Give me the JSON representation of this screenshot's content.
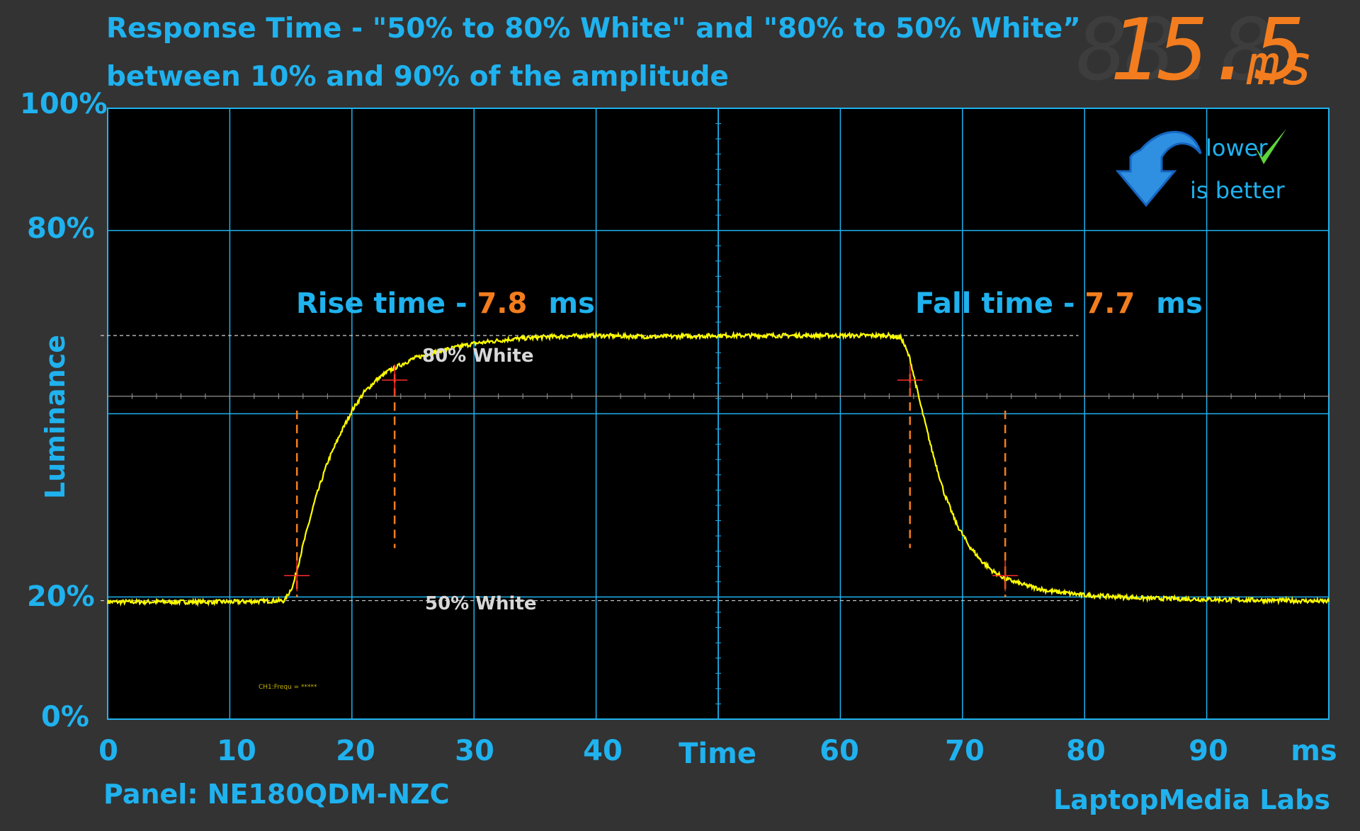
{
  "header": {
    "title_line1": "Response Time - \"50% to 80% White\" and \"80% to 50% White”",
    "title_line2": "between 10% and 90% of the amplitude",
    "result_value": "15.5",
    "result_unit": "ms"
  },
  "badge": {
    "line1": "lower",
    "line2": "is better",
    "icon": "down-arrow-icon",
    "check": "checkmark-icon"
  },
  "annotations": {
    "rise_label": "Rise time - ",
    "rise_value": "7.8",
    "rise_unit": "ms",
    "fall_label": "Fall time - ",
    "fall_value": "7.7",
    "fall_unit": "ms",
    "high_ref": "80% White",
    "low_ref": "50% White",
    "scope_readout": "CH1:Frequ = *****"
  },
  "footer": {
    "panel": "Panel: NE180QDM-NZC",
    "brand": "LaptopMedia Labs"
  },
  "colors": {
    "accent": "#1fb2ef",
    "value": "#f37d1e",
    "trace": "#ffff00",
    "marker": "#ff2a2a",
    "plot_bg": "#000000"
  },
  "chart_data": {
    "type": "line",
    "title": "Response Time - \"50% to 80% White\" and \"80% to 50% White”",
    "subtitle": "between 10% and 90% of the amplitude",
    "xlabel": "Time",
    "x_unit": "ms",
    "ylabel": "Luminance",
    "xlim": [
      0,
      100
    ],
    "ylim": [
      0,
      100
    ],
    "x_ticks": [
      "0",
      "10",
      "20",
      "30",
      "40",
      "60",
      "70",
      "80",
      "90"
    ],
    "y_ticks": [
      {
        "value": 100,
        "label": "100%"
      },
      {
        "value": 80,
        "label": "80%"
      },
      {
        "value": 20,
        "label": "20%"
      },
      {
        "value": 0,
        "label": "0%"
      }
    ],
    "grid": true,
    "series": [
      {
        "x": [
          0,
          10,
          14.5,
          15.2,
          16,
          17,
          18,
          19,
          20,
          21,
          22,
          23,
          25,
          27,
          30,
          33,
          36,
          40,
          45,
          50,
          55,
          60,
          64,
          65,
          65.7,
          66.5,
          67.5,
          68.5,
          69.5,
          70.5,
          71.5,
          72.5,
          73.5,
          75,
          77,
          80,
          85,
          90,
          100
        ],
        "y": [
          19.2,
          19.2,
          19.4,
          22,
          28.5,
          36,
          42,
          46.5,
          50.5,
          53.5,
          55.5,
          57,
          59,
          60.2,
          61.5,
          62.2,
          62.6,
          62.8,
          62.6,
          62.8,
          62.8,
          62.8,
          62.8,
          62.4,
          59,
          52,
          44,
          37,
          32,
          28.5,
          26,
          24.2,
          23,
          22,
          21,
          20.3,
          19.8,
          19.6,
          19.3
        ]
      }
    ],
    "reference_lines": [
      {
        "label": "80% White",
        "y": 62.8
      },
      {
        "label": "50% White",
        "y": 19.4
      }
    ],
    "markers": [
      {
        "x": 15.5,
        "y": 23.5
      },
      {
        "x": 23.5,
        "y": 55.5
      },
      {
        "x": 65.7,
        "y": 55.5
      },
      {
        "x": 73.5,
        "y": 23.5
      }
    ],
    "duration_lines_x": [
      15.5,
      23.5,
      65.7,
      73.5
    ],
    "duration_lines_y": [
      28,
      50
    ]
  }
}
